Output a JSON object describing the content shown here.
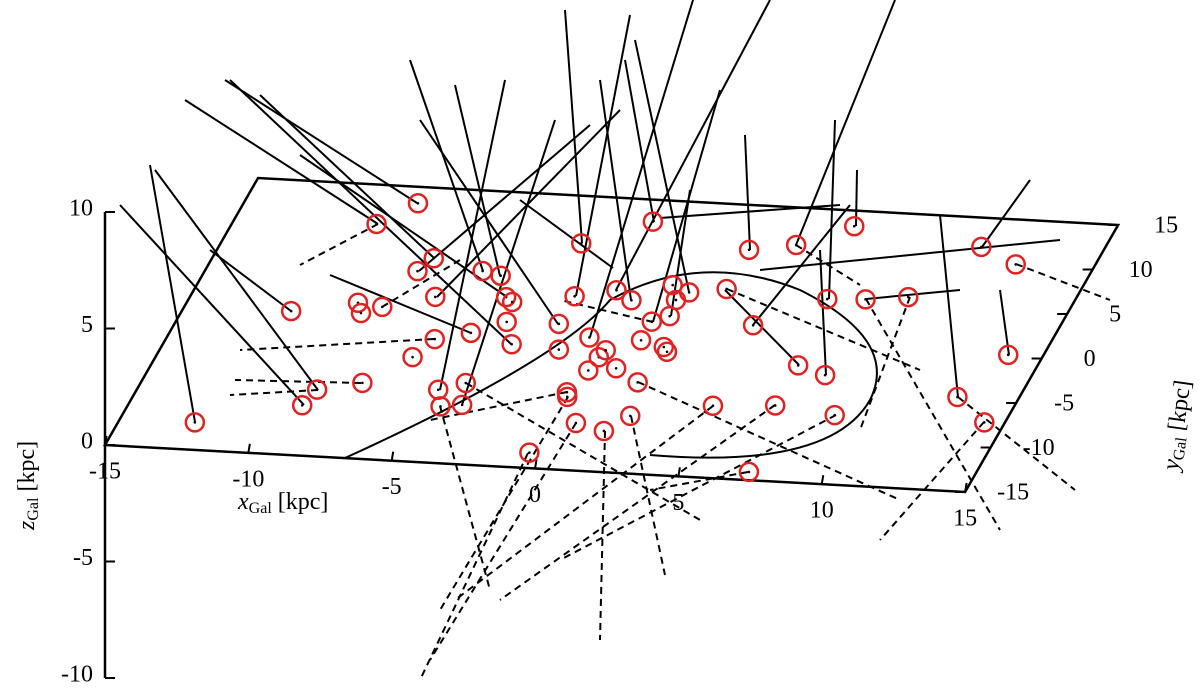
{
  "chart_data": {
    "type": "scatter3d",
    "xlabel": {
      "symbol": "x",
      "subscript": "Gal",
      "unit": "[kpc]"
    },
    "ylabel": {
      "symbol": "y",
      "subscript": "Gal",
      "unit": "[kpc]"
    },
    "zlabel": {
      "symbol": "z",
      "subscript": "Gal",
      "unit": "[kpc]"
    },
    "xlim": [
      -15,
      15
    ],
    "ylim": [
      -15,
      15
    ],
    "zlim": [
      -10,
      10
    ],
    "xticks": [
      -15,
      -10,
      -5,
      0,
      5,
      10,
      15
    ],
    "yticks": [
      -15,
      -10,
      -5,
      0,
      5,
      10,
      15
    ],
    "zticks": [
      -10,
      -5,
      0,
      5,
      10
    ],
    "color": "#e02222",
    "x": [
      -12.4,
      -9.1,
      -8.9,
      -11.3,
      -10.1,
      -9.1,
      -7.5,
      -9.2,
      -8.9,
      -8.3,
      -6.3,
      -7.8,
      -7.5,
      -6.7,
      -5.9,
      -4.8,
      -4.4,
      -3.7,
      -4.0,
      -4.8,
      -5.6,
      -4.9,
      -4.3,
      -4.0,
      -3.8,
      -3.2,
      -0.5,
      -2.0,
      -1.5,
      -0.4,
      -0.3,
      0.5,
      -2.0,
      -2.8,
      -0.7,
      -0.1,
      0,
      0.1,
      1.6,
      -0.7,
      0.8,
      0,
      2.2,
      1.8,
      1.1,
      1.1,
      -0.8,
      2.0,
      2.2,
      1.6,
      1.1,
      1.5,
      1.8,
      3.0,
      4.8,
      7.3,
      3.0,
      4.6,
      6.9,
      4.5,
      6.9,
      8.0,
      6.6,
      9.1,
      6.1,
      7.9,
      9.3,
      12.9,
      10.8,
      14.3,
      13.8,
      12.3
    ],
    "y": [
      -12.0,
      -9.5,
      -7.7,
      0.7,
      10.7,
      13.2,
      -6.7,
      2.0,
      0.9,
      1.7,
      -3.6,
      5.8,
      7.3,
      3.1,
      -1.5,
      -7.0,
      -8.8,
      -8.5,
      -6.1,
      -0.6,
      6.2,
      5.8,
      3.5,
      3.0,
      0.8,
      -1.6,
      -13.3,
      0.9,
      -1.9,
      -6.5,
      -7.0,
      -9.8,
      4.0,
      9.8,
      -0.4,
      -4.0,
      -2.5,
      -1.7,
      -10.5,
      4.9,
      -3.6,
      3.9,
      -8.7,
      -5.0,
      -0.4,
      1.7,
      12.6,
      -1.0,
      -1.5,
      2.4,
      5.8,
      4.2,
      5.1,
      5.7,
      -7.1,
      -14.1,
      10.1,
      1.9,
      -6.7,
      10.9,
      -2.2,
      -3.1,
      5.2,
      -7.4,
      13.3,
      5.4,
      5.9,
      -4.7,
      11.8,
      -7.3,
      0.2,
      10.1
    ]
  }
}
